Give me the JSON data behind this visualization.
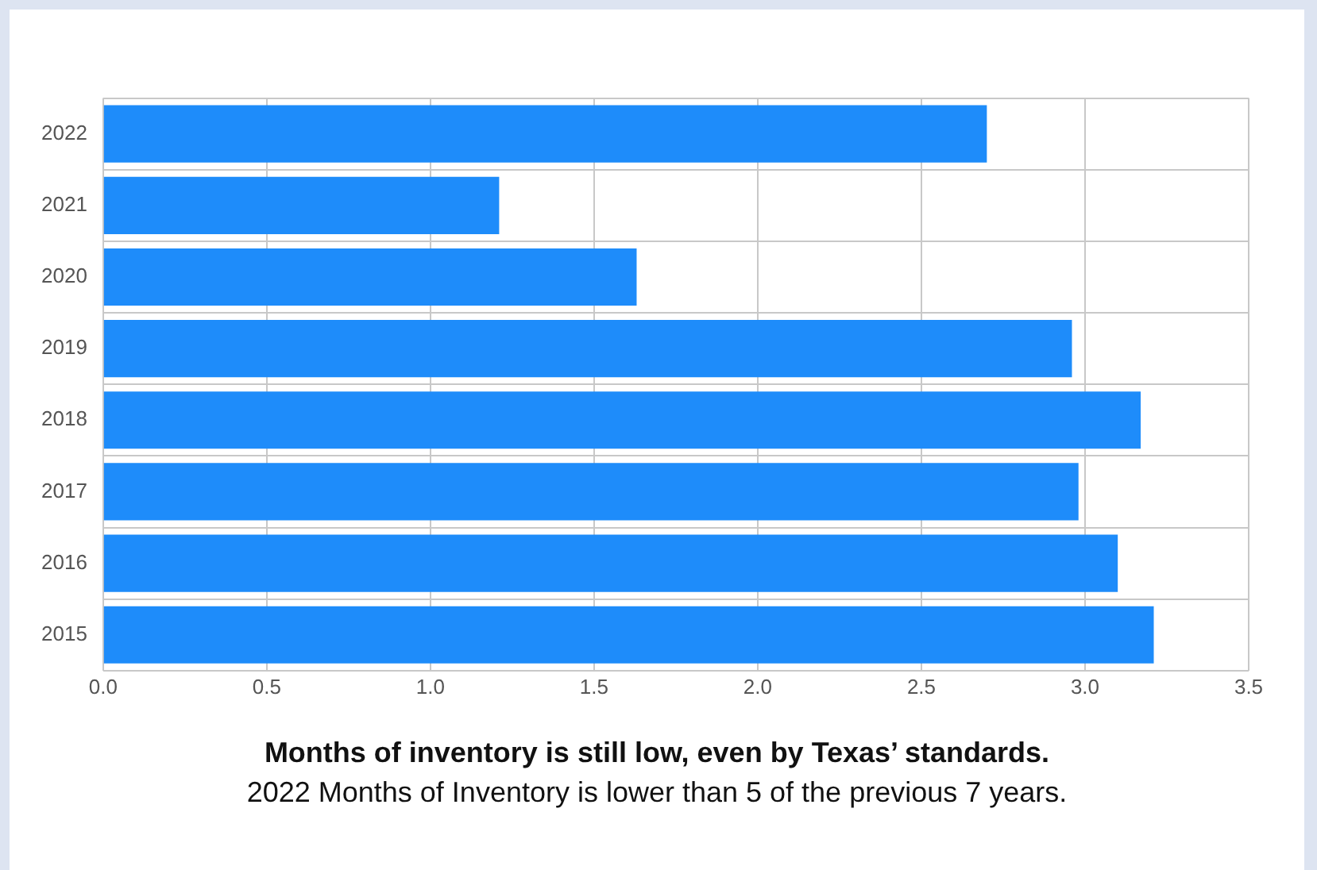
{
  "chart_data": {
    "type": "bar",
    "orientation": "horizontal",
    "title": "Months of inventory is still low, even by Texas’ standards.",
    "subtitle": "2022 Months of Inventory is lower than 5 of the previous 7 years.",
    "categories": [
      "2022",
      "2021",
      "2020",
      "2019",
      "2018",
      "2017",
      "2016",
      "2015"
    ],
    "values": [
      2.7,
      1.21,
      1.63,
      2.96,
      3.17,
      2.98,
      3.1,
      3.21
    ],
    "color": "#1e8cfa",
    "xlim": [
      0,
      3.5
    ],
    "xticks": [
      {
        "value": 0,
        "label": "0.0"
      },
      {
        "value": 0.5,
        "label": "0.5"
      },
      {
        "value": 1,
        "label": "1.0"
      },
      {
        "value": 1.5,
        "label": "1.5"
      },
      {
        "value": 2,
        "label": "2.0"
      },
      {
        "value": 2.5,
        "label": "2.5"
      },
      {
        "value": 3,
        "label": "3.0"
      },
      {
        "value": 3.5,
        "label": "3.5"
      }
    ],
    "grid": true
  }
}
